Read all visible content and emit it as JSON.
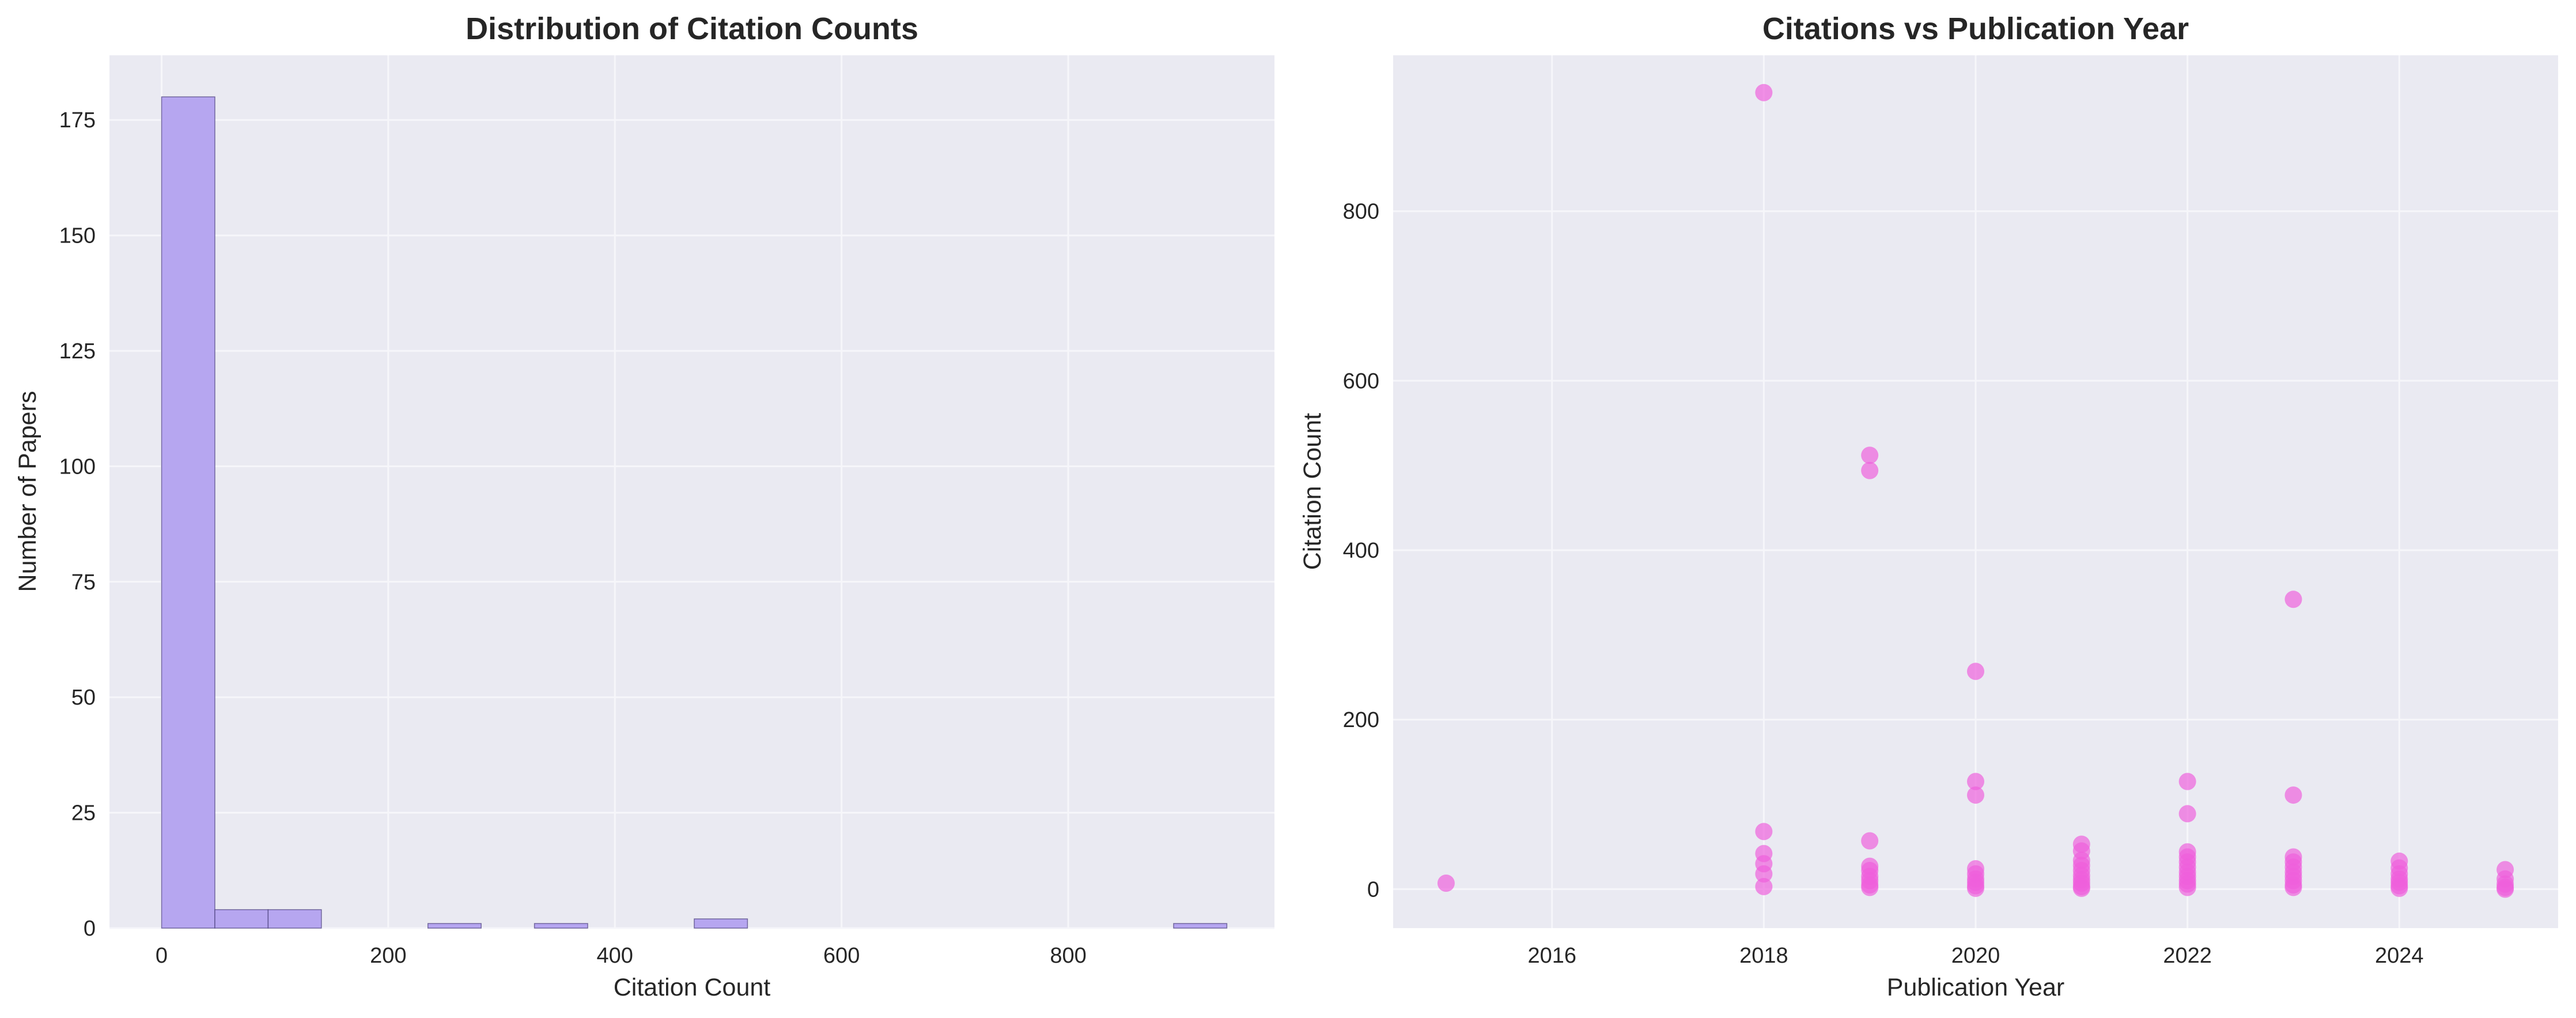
{
  "colors": {
    "background": "#ffffff",
    "plot_background": "#eaeaf2",
    "grid": "#f6f6fa",
    "histogram_fill": "#b6a6f0",
    "histogram_edge": "#4a3f7a",
    "scatter_points": "#ef5fdc"
  },
  "chart_data": [
    {
      "type": "bar",
      "subtype": "histogram",
      "title": "Distribution of Citation Counts",
      "xlabel": "Citation Count",
      "ylabel": "Number of Papers",
      "xlim": [
        -46,
        982
      ],
      "ylim": [
        0,
        189
      ],
      "xticks": [
        0,
        200,
        400,
        600,
        800
      ],
      "yticks": [
        0,
        25,
        50,
        75,
        100,
        125,
        150,
        175
      ],
      "grid": true,
      "bin_edges": [
        0,
        47,
        94,
        141,
        188,
        235,
        282,
        329,
        376,
        423,
        470,
        517,
        564,
        611,
        658,
        705,
        752,
        799,
        846,
        893,
        940
      ],
      "counts": [
        180,
        4,
        4,
        0,
        0,
        1,
        0,
        1,
        0,
        0,
        2,
        0,
        0,
        0,
        0,
        0,
        0,
        0,
        0,
        1
      ]
    },
    {
      "type": "scatter",
      "title": "Citations vs Publication Year",
      "xlabel": "Publication Year",
      "ylabel": "Citation Count",
      "xlim": [
        2014.5,
        2025.5
      ],
      "ylim": [
        -46,
        984
      ],
      "xticks": [
        2016,
        2018,
        2020,
        2022,
        2024
      ],
      "yticks": [
        0,
        200,
        400,
        600,
        800
      ],
      "grid": true,
      "points": [
        {
          "x": 2015,
          "y": 7
        },
        {
          "x": 2018,
          "y": 940
        },
        {
          "x": 2018,
          "y": 68
        },
        {
          "x": 2018,
          "y": 42
        },
        {
          "x": 2018,
          "y": 30
        },
        {
          "x": 2018,
          "y": 18
        },
        {
          "x": 2018,
          "y": 3
        },
        {
          "x": 2019,
          "y": 512
        },
        {
          "x": 2019,
          "y": 494
        },
        {
          "x": 2019,
          "y": 57
        },
        {
          "x": 2019,
          "y": 27
        },
        {
          "x": 2019,
          "y": 22
        },
        {
          "x": 2019,
          "y": 15
        },
        {
          "x": 2019,
          "y": 10
        },
        {
          "x": 2019,
          "y": 5
        },
        {
          "x": 2019,
          "y": 2
        },
        {
          "x": 2020,
          "y": 257
        },
        {
          "x": 2020,
          "y": 127
        },
        {
          "x": 2020,
          "y": 111
        },
        {
          "x": 2020,
          "y": 24
        },
        {
          "x": 2020,
          "y": 18
        },
        {
          "x": 2020,
          "y": 12
        },
        {
          "x": 2020,
          "y": 8
        },
        {
          "x": 2020,
          "y": 4
        },
        {
          "x": 2020,
          "y": 1
        },
        {
          "x": 2021,
          "y": 53
        },
        {
          "x": 2021,
          "y": 45
        },
        {
          "x": 2021,
          "y": 34
        },
        {
          "x": 2021,
          "y": 28
        },
        {
          "x": 2021,
          "y": 22
        },
        {
          "x": 2021,
          "y": 16
        },
        {
          "x": 2021,
          "y": 11
        },
        {
          "x": 2021,
          "y": 7
        },
        {
          "x": 2021,
          "y": 3
        },
        {
          "x": 2021,
          "y": 1
        },
        {
          "x": 2022,
          "y": 127
        },
        {
          "x": 2022,
          "y": 89
        },
        {
          "x": 2022,
          "y": 44
        },
        {
          "x": 2022,
          "y": 38
        },
        {
          "x": 2022,
          "y": 32
        },
        {
          "x": 2022,
          "y": 26
        },
        {
          "x": 2022,
          "y": 20
        },
        {
          "x": 2022,
          "y": 15
        },
        {
          "x": 2022,
          "y": 10
        },
        {
          "x": 2022,
          "y": 6
        },
        {
          "x": 2022,
          "y": 2
        },
        {
          "x": 2023,
          "y": 342
        },
        {
          "x": 2023,
          "y": 111
        },
        {
          "x": 2023,
          "y": 38
        },
        {
          "x": 2023,
          "y": 32
        },
        {
          "x": 2023,
          "y": 26
        },
        {
          "x": 2023,
          "y": 20
        },
        {
          "x": 2023,
          "y": 15
        },
        {
          "x": 2023,
          "y": 10
        },
        {
          "x": 2023,
          "y": 5
        },
        {
          "x": 2023,
          "y": 2
        },
        {
          "x": 2024,
          "y": 33
        },
        {
          "x": 2024,
          "y": 25
        },
        {
          "x": 2024,
          "y": 18
        },
        {
          "x": 2024,
          "y": 12
        },
        {
          "x": 2024,
          "y": 8
        },
        {
          "x": 2024,
          "y": 4
        },
        {
          "x": 2024,
          "y": 1
        },
        {
          "x": 2025,
          "y": 23
        },
        {
          "x": 2025,
          "y": 12
        },
        {
          "x": 2025,
          "y": 6
        },
        {
          "x": 2025,
          "y": 2
        },
        {
          "x": 2025,
          "y": 0
        }
      ]
    }
  ]
}
